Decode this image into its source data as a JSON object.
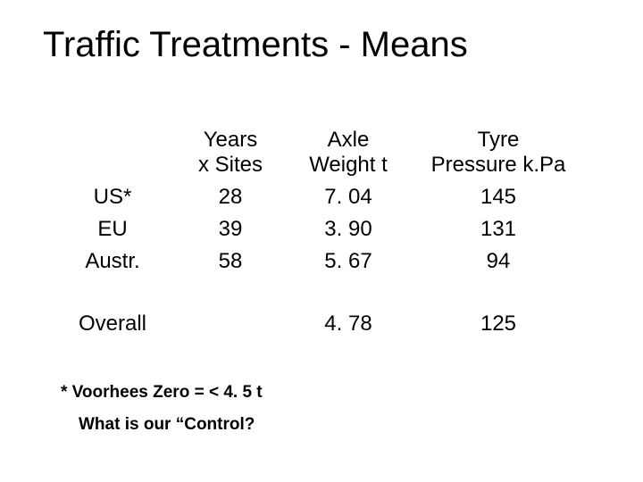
{
  "title": "Traffic Treatments - Means",
  "table": {
    "headers": {
      "col1_line1": "Years",
      "col1_line2": "x Sites",
      "col2_line1": "Axle",
      "col2_line2": "Weight t",
      "col3_line1": "Tyre",
      "col3_line2": "Pressure k.Pa"
    },
    "rows": [
      {
        "label": "US*",
        "years": "28",
        "axle": "7. 04",
        "tyre": "145"
      },
      {
        "label": "EU",
        "years": "39",
        "axle": "3. 90",
        "tyre": "131"
      },
      {
        "label": "Austr.",
        "years": "58",
        "axle": "5. 67",
        "tyre": "94"
      }
    ],
    "overall": {
      "label": "Overall",
      "years": "",
      "axle": "4. 78",
      "tyre": "125"
    }
  },
  "footnote": "* Voorhees Zero =   < 4. 5 t",
  "subnote": "What is our “Control?"
}
